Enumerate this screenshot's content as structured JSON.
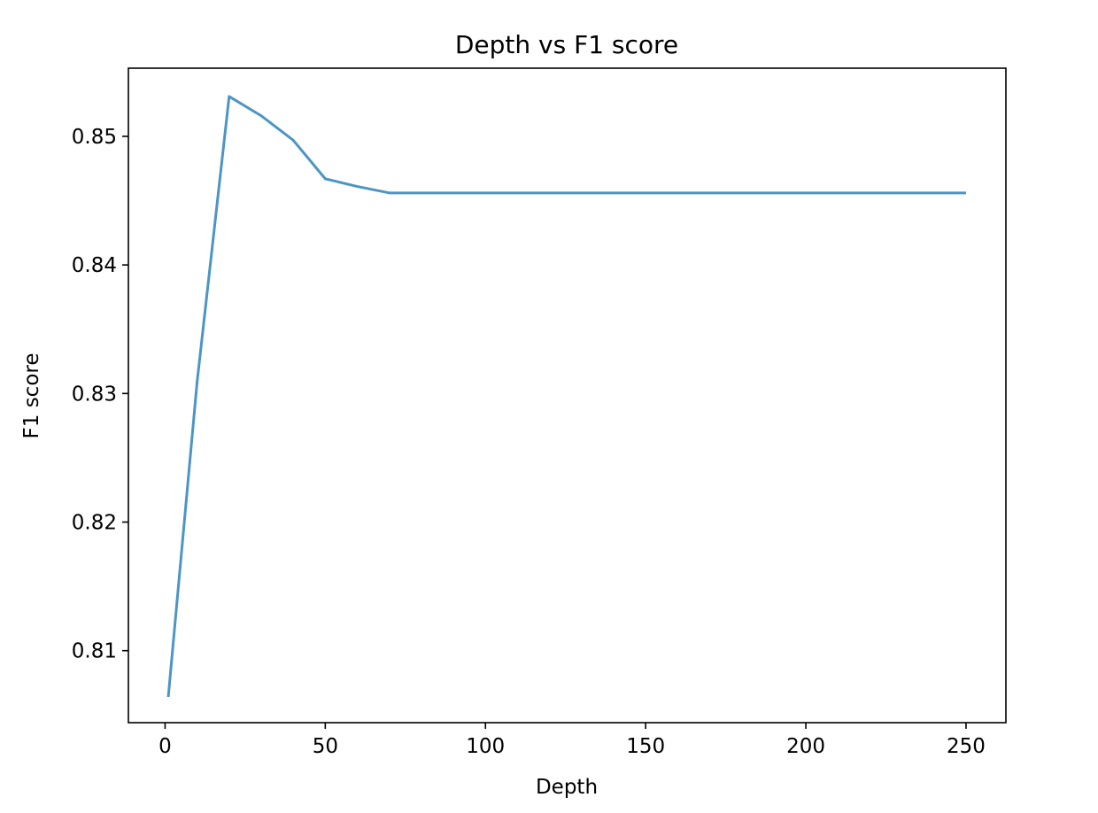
{
  "chart_data": {
    "type": "line",
    "title": "Depth vs F1 score",
    "xlabel": "Depth",
    "ylabel": "F1 score",
    "xlim": [
      -11.45,
      262.45
    ],
    "ylim": [
      0.8044,
      0.8553
    ],
    "xticks": [
      0,
      50,
      100,
      150,
      200,
      250
    ],
    "yticks": [
      0.81,
      0.82,
      0.83,
      0.84,
      0.85
    ],
    "grid": false,
    "series": [
      {
        "color": "#4c95c4",
        "x": [
          1,
          10,
          20,
          30,
          40,
          50,
          60,
          70,
          80,
          90,
          100,
          110,
          120,
          130,
          140,
          150,
          160,
          170,
          180,
          190,
          200,
          210,
          220,
          230,
          240,
          250
        ],
        "y": [
          0.8064,
          0.8309,
          0.8531,
          0.8516,
          0.8497,
          0.8467,
          0.8461,
          0.8456,
          0.8456,
          0.8456,
          0.8456,
          0.8456,
          0.8456,
          0.8456,
          0.8456,
          0.8456,
          0.8456,
          0.8456,
          0.8456,
          0.8456,
          0.8456,
          0.8456,
          0.8456,
          0.8456,
          0.8456,
          0.8456
        ]
      }
    ]
  }
}
